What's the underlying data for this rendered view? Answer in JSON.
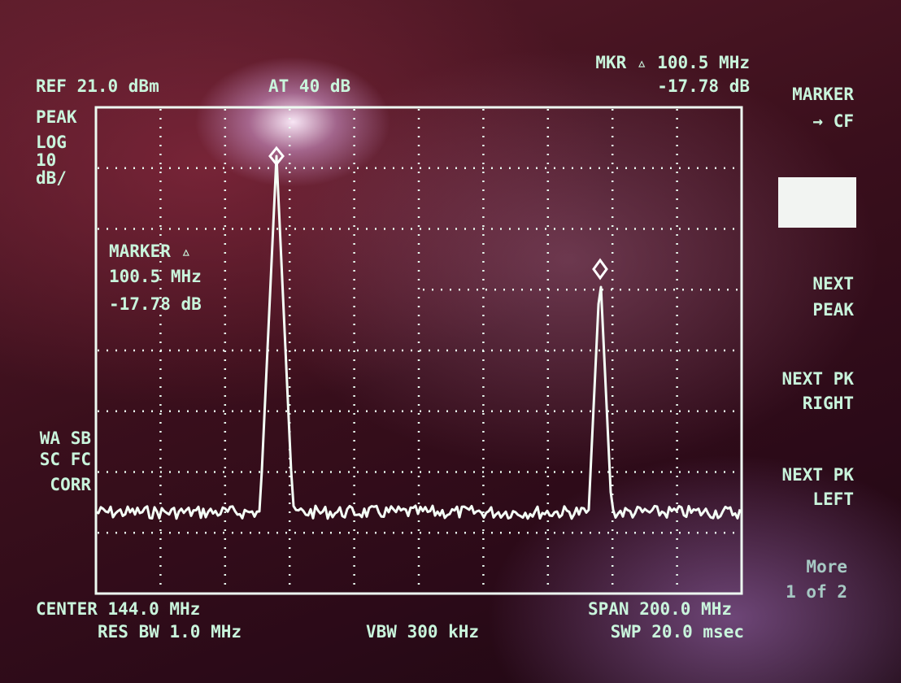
{
  "header": {
    "ref_level": "REF 21.0 dBm",
    "attenuation": "AT 40 dB",
    "marker_frequency": "MKR ▵ 100.5 MHz",
    "marker_amplitude": "-17.78 dB"
  },
  "left_panel": {
    "detector": "PEAK",
    "scale_type": "LOG",
    "scale_value": "10",
    "scale_unit": "dB/",
    "status": [
      "WA SB",
      "SC FC",
      "CORR"
    ]
  },
  "marker_readout": {
    "title": "MARKER ▵",
    "frequency": "100.5 MHz",
    "amplitude": "-17.78 dB"
  },
  "softkeys": [
    {
      "lines": [
        "MARKER",
        "→ CF"
      ]
    },
    {
      "lines": [
        "NEXT",
        "PEAK"
      ]
    },
    {
      "lines": [
        "NEXT PK",
        "RIGHT"
      ]
    },
    {
      "lines": [
        "NEXT PK",
        "LEFT"
      ]
    },
    {
      "lines": [
        "More",
        "1 of 2"
      ]
    }
  ],
  "footer": {
    "center": "CENTER 144.0 MHz",
    "res_bw": "RES BW 1.0 MHz",
    "vbw": "VBW 300 kHz",
    "span": "SPAN 200.0 MHz",
    "sweep": "SWP 20.0 msec"
  }
}
